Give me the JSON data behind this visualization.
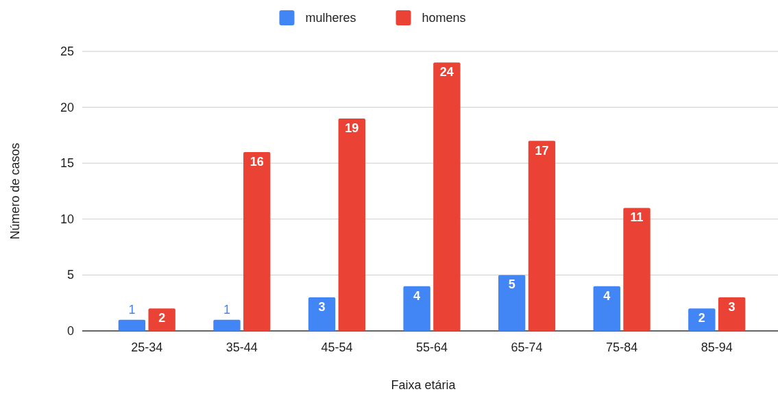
{
  "chart_data": {
    "type": "bar",
    "xlabel": "Faixa etária",
    "ylabel": "Número de casos",
    "categories": [
      "25-34",
      "35-44",
      "45-54",
      "55-64",
      "65-74",
      "75-84",
      "85-94"
    ],
    "series": [
      {
        "name": "mulheres",
        "color": "#4285f4",
        "values": [
          1,
          1,
          3,
          4,
          5,
          4,
          2
        ]
      },
      {
        "name": "homens",
        "color": "#ea4335",
        "values": [
          2,
          16,
          19,
          24,
          17,
          11,
          3
        ]
      }
    ],
    "ylim": [
      0,
      25
    ],
    "yticks": [
      0,
      5,
      10,
      15,
      20,
      25
    ],
    "grid": "y",
    "legend": "top",
    "data_labels": true
  }
}
